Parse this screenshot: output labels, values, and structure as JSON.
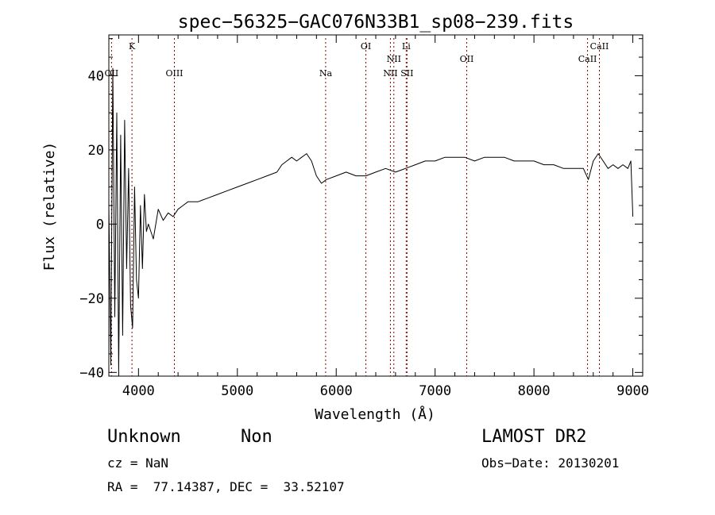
{
  "chart_data": {
    "type": "line",
    "title": "spec−56325−GAC076N33B1_sp08−239.fits",
    "xlabel": "Wavelength (Å)",
    "ylabel": "Flux (relative)",
    "xlim": [
      3700,
      9100
    ],
    "ylim": [
      -41,
      51
    ],
    "x_ticks": [
      4000,
      5000,
      6000,
      7000,
      8000,
      9000
    ],
    "x_tick_labels": [
      "4000",
      "5000",
      "6000",
      "7000",
      "8000",
      "9000"
    ],
    "y_ticks": [
      -40,
      -20,
      0,
      20,
      40
    ],
    "y_tick_labels": [
      "−40",
      "−20",
      "0",
      "20",
      "40"
    ],
    "grid": false,
    "line_color": "#000000",
    "marker_color": "#8b0000",
    "spectral_lines": [
      {
        "label": "OII",
        "x": 3727,
        "row": "lower"
      },
      {
        "label": "K",
        "x": 3934,
        "row": "upper"
      },
      {
        "label": "OIII",
        "x": 4363,
        "row": "lower"
      },
      {
        "label": "Na",
        "x": 5893,
        "row": "lower"
      },
      {
        "label": "OI",
        "x": 6300,
        "row": "upper"
      },
      {
        "label": "NII",
        "x": 6548,
        "row": "lower"
      },
      {
        "label": "NII",
        "x": 6583,
        "row": "middle"
      },
      {
        "label": "Li",
        "x": 6708,
        "row": "upper"
      },
      {
        "label": "SII",
        "x": 6716,
        "row": "lower"
      },
      {
        "label": "OII",
        "x": 7320,
        "row": "middle"
      },
      {
        "label": "CaII",
        "x": 8542,
        "row": "middle"
      },
      {
        "label": "CaII",
        "x": 8662,
        "row": "upper"
      }
    ],
    "series": [
      {
        "x": [
          3700,
          3720,
          3740,
          3760,
          3780,
          3800,
          3820,
          3840,
          3860,
          3880,
          3900,
          3920,
          3940,
          3960,
          3980,
          4000,
          4020,
          4040,
          4060,
          4080,
          4100,
          4150,
          4200,
          4250,
          4300,
          4350,
          4400,
          4450,
          4500,
          4600,
          4700,
          4800,
          4900,
          5000,
          5100,
          5200,
          5300,
          5400,
          5450,
          5500,
          5550,
          5600,
          5650,
          5700,
          5750,
          5800,
          5850,
          5900,
          6000,
          6100,
          6200,
          6300,
          6400,
          6500,
          6600,
          6700,
          6800,
          6900,
          7000,
          7100,
          7200,
          7300,
          7400,
          7500,
          7600,
          7700,
          7800,
          7900,
          8000,
          8100,
          8200,
          8300,
          8400,
          8500,
          8550,
          8600,
          8650,
          8700,
          8750,
          8800,
          8850,
          8900,
          8950,
          8980,
          9000
        ],
        "y": [
          5,
          -38,
          42,
          -25,
          30,
          -40,
          24,
          -30,
          28,
          -12,
          15,
          -22,
          -28,
          10,
          -15,
          -20,
          5,
          -12,
          8,
          -2,
          0,
          -4,
          4,
          1,
          3,
          2,
          4,
          5,
          6,
          6,
          7,
          8,
          9,
          10,
          11,
          12,
          13,
          14,
          16,
          17,
          18,
          17,
          18,
          19,
          17,
          13,
          11,
          12,
          13,
          14,
          13,
          13,
          14,
          15,
          14,
          15,
          16,
          17,
          17,
          18,
          18,
          18,
          17,
          18,
          18,
          18,
          17,
          17,
          17,
          16,
          16,
          15,
          15,
          15,
          12,
          17,
          19,
          17,
          15,
          16,
          15,
          16,
          15,
          17,
          2
        ]
      }
    ]
  },
  "info": {
    "object_class": "Unknown",
    "object_subclass": "Non",
    "survey": "LAMOST DR2",
    "cz": "cz = NaN",
    "obs_date": "Obs−Date: 20130201",
    "coords": "RA =  77.14387, DEC =  33.52107"
  }
}
